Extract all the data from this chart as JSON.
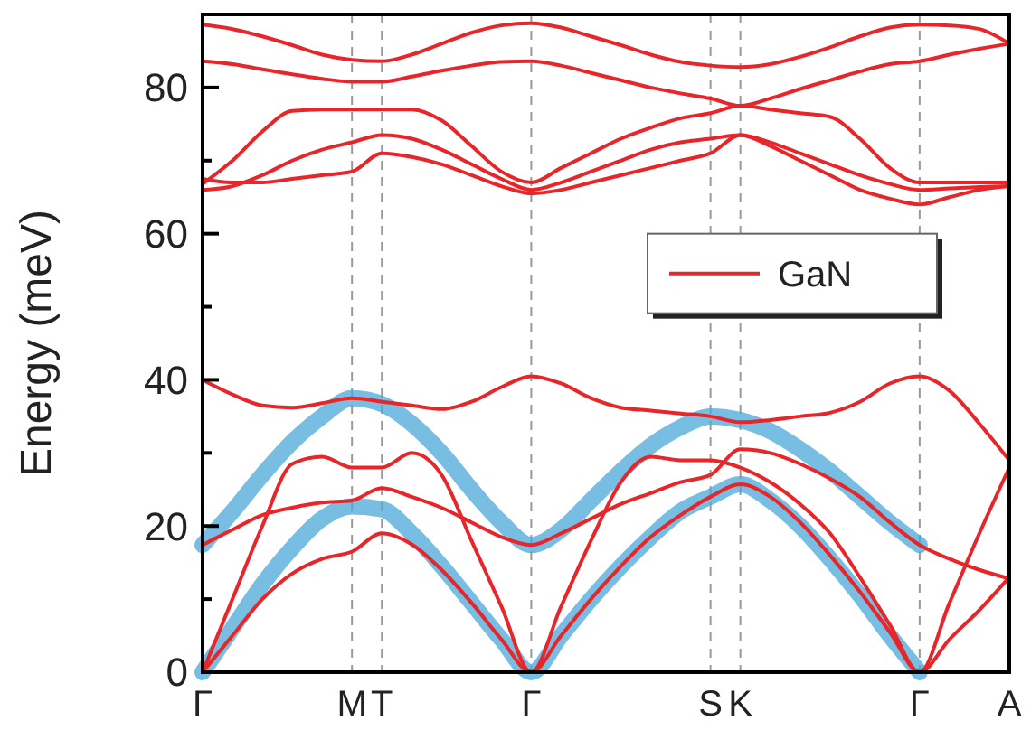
{
  "chart_data": {
    "type": "line",
    "ylabel": "Energy (meV)",
    "ylim": [
      0,
      90
    ],
    "categories": [
      "Γ",
      null,
      null,
      null,
      null,
      "M",
      "T",
      null,
      null,
      null,
      null,
      "Γ",
      null,
      null,
      null,
      null,
      null,
      "S",
      "K",
      null,
      null,
      null,
      null,
      null,
      "Γ",
      null,
      null,
      "A"
    ],
    "yticks": [
      0,
      {
        "value": 10,
        "label": null
      },
      20,
      {
        "value": 30,
        "label": null
      },
      40,
      {
        "value": 50,
        "label": null
      },
      60,
      {
        "value": 70,
        "label": null
      },
      80
    ],
    "series": [
      {
        "color": "#4aa8d8",
        "values": [
          17.4,
          22,
          27,
          31.5,
          35,
          37.5,
          36.7,
          34,
          30,
          25,
          20.5,
          17.4,
          19.5,
          23.5,
          27.5,
          31,
          33.5,
          35,
          34.5,
          33,
          30.5,
          27.5,
          24,
          20.5,
          17.4,
          null,
          null,
          null
        ]
      },
      {
        "color": "#4aa8d8",
        "values": [
          0,
          6,
          12,
          17,
          21,
          22.7,
          22.3,
          19,
          14.5,
          9.5,
          4.5,
          0,
          5,
          10,
          14.5,
          18.5,
          22,
          24,
          25.7,
          23.5,
          20,
          15.5,
          10.5,
          5,
          0,
          null,
          null,
          null
        ]
      },
      {
        "name": "GaN",
        "color": "#e8262a",
        "values": [
          40,
          38,
          36.5,
          36.2,
          36.8,
          37.5,
          37,
          36.5,
          36,
          37,
          39,
          40.5,
          39.5,
          37.5,
          36.2,
          35.8,
          35.4,
          35,
          34.2,
          34.5,
          35,
          35.5,
          37,
          39.5,
          40.5,
          38.5,
          34,
          29
        ]
      },
      {
        "color": "#e8262a",
        "values": [
          0,
          10,
          20,
          28.5,
          29.5,
          28,
          28,
          30,
          27,
          18,
          9,
          0,
          9,
          18,
          26,
          29.5,
          29,
          29,
          28,
          26,
          23,
          19,
          13,
          6.5,
          0,
          9.5,
          19,
          28
        ]
      },
      {
        "color": "#e8262a",
        "values": [
          17.4,
          19.5,
          21.5,
          22.5,
          23.2,
          23.5,
          25.2,
          24,
          22.5,
          20.5,
          18.5,
          17.4,
          19,
          21,
          23,
          24.5,
          26,
          27,
          30.5,
          30,
          28.5,
          26.5,
          24,
          20.5,
          17.4,
          15.5,
          14,
          12.8
        ]
      },
      {
        "color": "#e8262a",
        "values": [
          0,
          5,
          10,
          13.5,
          15.5,
          16.5,
          19,
          17.5,
          14,
          9.5,
          4.5,
          0,
          5,
          10,
          14.5,
          18.5,
          21.5,
          24,
          25.7,
          24,
          20.5,
          16,
          11,
          5.5,
          0,
          4.5,
          8.5,
          13
        ]
      },
      {
        "color": "#e8262a",
        "values": [
          88.6,
          88,
          87,
          85.8,
          84.5,
          83.8,
          83.6,
          84.5,
          86,
          87.5,
          88.5,
          88.8,
          88.2,
          87,
          85.8,
          84.5,
          83.5,
          83,
          82.8,
          83.2,
          84.2,
          85.5,
          87,
          88.2,
          88.6,
          88.5,
          88,
          86
        ]
      },
      {
        "color": "#e8262a",
        "values": [
          83.6,
          83.2,
          82.5,
          81.8,
          81.2,
          80.8,
          80.8,
          81.5,
          82.3,
          83,
          83.5,
          83.6,
          83,
          82,
          81,
          80,
          79.2,
          78.5,
          77.5,
          78.5,
          79.8,
          81,
          82.2,
          83.2,
          83.6,
          84.5,
          85.3,
          86
        ]
      },
      {
        "color": "#e8262a",
        "values": [
          66.8,
          70,
          74,
          76.8,
          77,
          77,
          77,
          77,
          75.5,
          72,
          68.5,
          67,
          69,
          71,
          73,
          74.5,
          75.8,
          76.5,
          77.5,
          77,
          76.5,
          76,
          73,
          69,
          67,
          67,
          67,
          67
        ]
      },
      {
        "color": "#e8262a",
        "values": [
          66,
          66.5,
          68,
          70,
          71.5,
          72.5,
          73.5,
          73,
          71.5,
          69.5,
          67.5,
          66,
          67,
          68.5,
          70,
          71.5,
          72.5,
          73,
          73.5,
          72.5,
          71,
          69.5,
          68,
          66.8,
          66,
          66.2,
          66.4,
          66.5
        ]
      },
      {
        "color": "#e8262a",
        "values": [
          67.5,
          67,
          67,
          67.5,
          68,
          68.5,
          71,
          70.5,
          69.5,
          68,
          66.5,
          65.5,
          66,
          67,
          68,
          69,
          70,
          71,
          73.5,
          72,
          70,
          68,
          66,
          64.8,
          64,
          65,
          66,
          66.5
        ]
      }
    ],
    "legend": "right",
    "grid": "x",
    "marker": "none",
    "line_style": "solid"
  }
}
